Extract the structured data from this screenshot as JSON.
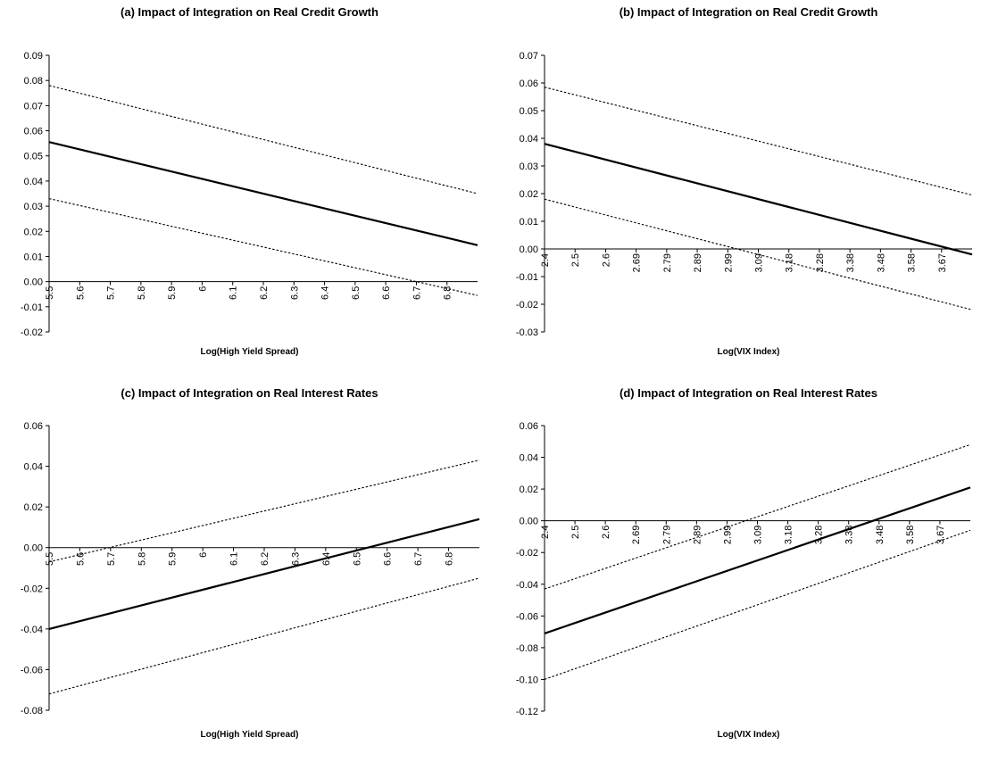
{
  "chart_data": [
    {
      "type": "line",
      "title": "(a) Impact of Integration on Real Credit Growth",
      "xlabel": "Log(High Yield Spread)",
      "ylabel": "",
      "x": [
        5.5,
        5.6,
        5.7,
        5.8,
        5.9,
        6,
        6.1,
        6.2,
        6.3,
        6.4,
        6.5,
        6.6,
        6.7,
        6.8
      ],
      "x_tick_labels": [
        "5.5",
        "5.6",
        "5.7",
        "5.8",
        "5.9",
        "6",
        "6.1",
        "6.2",
        "6.3",
        "6.4",
        "6.5",
        "6.6",
        "6.7",
        "6.8"
      ],
      "ylim": [
        -0.02,
        0.09
      ],
      "y_tick_labels": [
        "-0.02",
        "-0.01",
        "0.00",
        "0.01",
        "0.02",
        "0.03",
        "0.04",
        "0.05",
        "0.06",
        "0.07",
        "0.08",
        "0.09"
      ],
      "xrange": [
        5.5,
        6.85
      ],
      "series": [
        {
          "style": "solid",
          "x": [
            5.5,
            6.85
          ],
          "values": [
            0.0555,
            0.0145
          ]
        },
        {
          "style": "dotted",
          "x": [
            5.5,
            6.85
          ],
          "values": [
            0.078,
            0.035
          ]
        },
        {
          "style": "dotted",
          "x": [
            5.5,
            6.85
          ],
          "values": [
            0.033,
            -0.0055
          ]
        }
      ]
    },
    {
      "type": "line",
      "title": "(b) Impact of Integration on Real Credit Growth",
      "xlabel": "Log(VIX Index)",
      "ylabel": "",
      "x": [
        2.4,
        2.5,
        2.6,
        2.69,
        2.79,
        2.89,
        2.99,
        3.09,
        3.18,
        3.28,
        3.38,
        3.48,
        3.58,
        3.67
      ],
      "x_tick_labels": [
        "2.4",
        "2.5",
        "2.6",
        "2.69",
        "2.79",
        "2.89",
        "2.99",
        "3.09",
        "3.18",
        "3.28",
        "3.38",
        "3.48",
        "3.58",
        "3.67"
      ],
      "ylim": [
        -0.03,
        0.07
      ],
      "y_tick_labels": [
        "-0.03",
        "-0.02",
        "-0.01",
        "0.00",
        "0.01",
        "0.02",
        "0.03",
        "0.04",
        "0.05",
        "0.06",
        "0.07"
      ],
      "xrange": [
        2.4,
        3.72
      ],
      "series": [
        {
          "style": "solid",
          "x": [
            2.4,
            3.72
          ],
          "values": [
            0.038,
            -0.002
          ]
        },
        {
          "style": "dotted",
          "x": [
            2.4,
            3.72
          ],
          "values": [
            0.0585,
            0.0195
          ]
        },
        {
          "style": "dotted",
          "x": [
            2.4,
            3.72
          ],
          "values": [
            0.018,
            -0.022
          ]
        }
      ]
    },
    {
      "type": "line",
      "title": "(c) Impact of Integration on Real Interest Rates",
      "xlabel": "Log(High Yield Spread)",
      "ylabel": "",
      "x": [
        5.5,
        5.6,
        5.7,
        5.8,
        5.9,
        6,
        6.1,
        6.2,
        6.3,
        6.4,
        6.5,
        6.6,
        6.7,
        6.8
      ],
      "x_tick_labels": [
        "5.5",
        "5.6",
        "5.7",
        "5.8",
        "5.9",
        "6",
        "6.1",
        "6.2",
        "6.3",
        "6.4",
        "6.5",
        "6.6",
        "6.7",
        "6.8"
      ],
      "ylim": [
        -0.08,
        0.06
      ],
      "y_tick_labels": [
        "-0.08",
        "-0.06",
        "-0.04",
        "-0.02",
        "0.00",
        "0.02",
        "0.04",
        "0.06"
      ],
      "xrange": [
        5.5,
        6.85
      ],
      "series": [
        {
          "style": "solid",
          "x": [
            5.5,
            6.85
          ],
          "values": [
            -0.04,
            0.014
          ]
        },
        {
          "style": "dotted",
          "x": [
            5.5,
            6.85
          ],
          "values": [
            -0.007,
            0.043
          ]
        },
        {
          "style": "dotted",
          "x": [
            5.5,
            6.85
          ],
          "values": [
            -0.072,
            -0.015
          ]
        }
      ]
    },
    {
      "type": "line",
      "title": "(d) Impact of Integration on Real Interest Rates",
      "xlabel": "Log(VIX Index)",
      "ylabel": "",
      "x": [
        2.4,
        2.5,
        2.6,
        2.69,
        2.79,
        2.89,
        2.99,
        3.09,
        3.18,
        3.28,
        3.38,
        3.48,
        3.58,
        3.67
      ],
      "x_tick_labels": [
        "2.4",
        "2.5",
        "2.6",
        "2.69",
        "2.79",
        "2.89",
        "2.99",
        "3.09",
        "3.18",
        "3.28",
        "3.38",
        "3.48",
        "3.58",
        "3.67"
      ],
      "ylim": [
        -0.12,
        0.06
      ],
      "y_tick_labels": [
        "-0.12",
        "-0.10",
        "-0.08",
        "-0.06",
        "-0.04",
        "-0.02",
        "0.00",
        "0.02",
        "0.04",
        "0.06"
      ],
      "xrange": [
        2.4,
        3.72
      ],
      "series": [
        {
          "style": "solid",
          "x": [
            2.4,
            3.72
          ],
          "values": [
            -0.071,
            0.021
          ]
        },
        {
          "style": "dotted",
          "x": [
            2.4,
            3.72
          ],
          "values": [
            -0.043,
            0.048
          ]
        },
        {
          "style": "dotted",
          "x": [
            2.4,
            3.72
          ],
          "values": [
            -0.1,
            -0.006
          ]
        }
      ]
    }
  ]
}
